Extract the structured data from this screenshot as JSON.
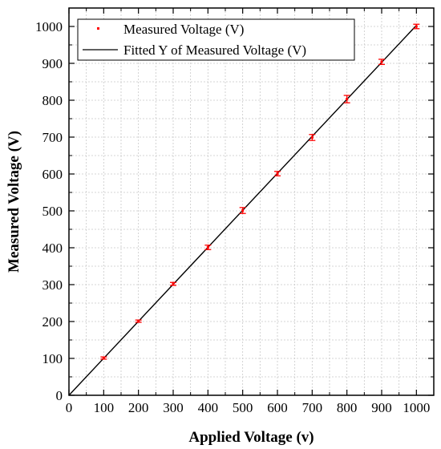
{
  "chart_data": {
    "type": "scatter",
    "title": "",
    "xlabel": "Applied Voltage (v)",
    "ylabel": "Measured Voltage (V)",
    "xlim": [
      0,
      1050
    ],
    "ylim": [
      0,
      1050
    ],
    "xticks": [
      0,
      100,
      200,
      300,
      400,
      500,
      600,
      700,
      800,
      900,
      1000
    ],
    "yticks": [
      0,
      100,
      200,
      300,
      400,
      500,
      600,
      700,
      800,
      900,
      1000
    ],
    "grid": true,
    "legend_position": "top-left",
    "series": [
      {
        "name": "Measured Voltage (V)",
        "kind": "scatter-with-error-bars",
        "color": "#ff0000",
        "x": [
          100,
          200,
          300,
          400,
          500,
          600,
          700,
          800,
          900,
          1000
        ],
        "y": [
          101,
          201,
          302,
          401,
          501,
          601,
          699,
          803,
          904,
          1000
        ],
        "yerr": [
          3,
          3,
          4,
          6,
          8,
          6,
          8,
          10,
          7,
          6
        ]
      },
      {
        "name": "Fitted Y of Measured Voltage (V)",
        "kind": "line",
        "color": "#000000",
        "x": [
          0,
          1000
        ],
        "y": [
          0,
          1003
        ]
      }
    ]
  }
}
